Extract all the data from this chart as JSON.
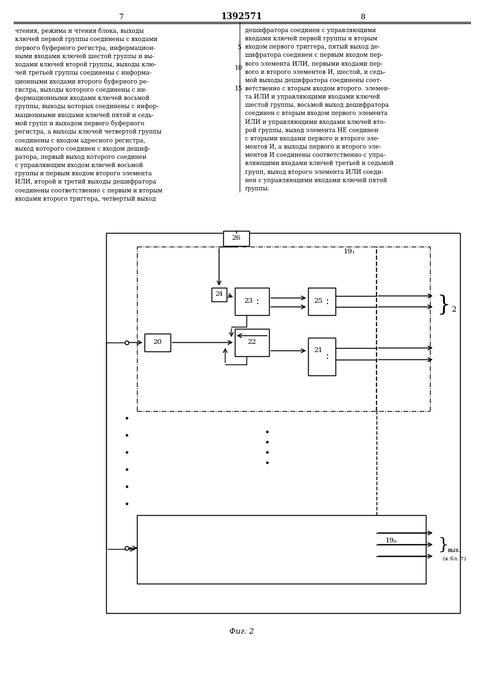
{
  "title": "1392571",
  "page_left": "7",
  "page_right": "8",
  "fig_label": "Фиг. 2",
  "background": "#ffffff",
  "line_color": "#000000",
  "text_color": "#000000"
}
